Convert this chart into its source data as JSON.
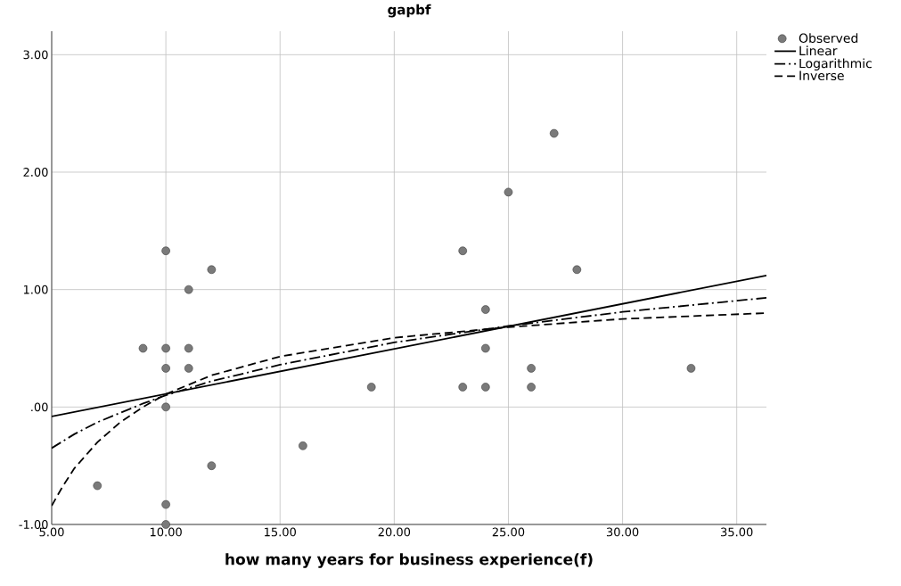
{
  "chart_data": {
    "type": "scatter",
    "title": "gapbf",
    "xlabel": "how many years for business experience(f)",
    "xlim": [
      5,
      36.3
    ],
    "ylim": [
      -1,
      3.2
    ],
    "xticks": [
      {
        "value": 5,
        "label": "5.00"
      },
      {
        "value": 10,
        "label": "10.00"
      },
      {
        "value": 15,
        "label": "15.00"
      },
      {
        "value": 20,
        "label": "20.00"
      },
      {
        "value": 25,
        "label": "25.00"
      },
      {
        "value": 30,
        "label": "30.00"
      },
      {
        "value": 35,
        "label": "35.00"
      }
    ],
    "yticks": [
      {
        "value": -1,
        "label": "-1.00"
      },
      {
        "value": 0,
        "label": ".00"
      },
      {
        "value": 1,
        "label": "1.00"
      },
      {
        "value": 2,
        "label": "2.00"
      },
      {
        "value": 3,
        "label": "3.00"
      }
    ],
    "grid": true,
    "legend": "top right",
    "series": [
      {
        "name": "Observed",
        "type": "scatter",
        "marker": "circle",
        "color": "#7a7a7a",
        "x": [
          7,
          9,
          10,
          10,
          10,
          10,
          10,
          10,
          11,
          11,
          11,
          12,
          12,
          16,
          19,
          23,
          23,
          24,
          24,
          24,
          25,
          26,
          26,
          27,
          28,
          33
        ],
        "values": [
          -0.67,
          0.5,
          1.33,
          0.5,
          0.33,
          0,
          -0.83,
          -1,
          1,
          0.5,
          0.33,
          1.17,
          -0.5,
          -0.33,
          0.17,
          1.33,
          0.17,
          0.83,
          0.5,
          0.17,
          1.83,
          0.33,
          0.17,
          2.33,
          1.17,
          0.33
        ]
      },
      {
        "name": "Linear",
        "type": "line",
        "marker": "none",
        "line_style": "solid",
        "color": "#000000",
        "x": [
          5,
          36.3
        ],
        "values": [
          -0.08,
          1.12
        ]
      },
      {
        "name": "Logarithmic",
        "type": "line",
        "marker": "none",
        "line_style": "dashdot",
        "color": "#000000",
        "x": [
          5,
          6,
          7,
          8,
          9,
          10,
          12,
          15,
          20,
          25,
          30,
          36.3
        ],
        "values": [
          -0.35,
          -0.23,
          -0.13,
          -0.05,
          0.03,
          0.1,
          0.22,
          0.36,
          0.55,
          0.69,
          0.81,
          0.93
        ]
      },
      {
        "name": "Inverse",
        "type": "line",
        "marker": "none",
        "line_style": "dashed",
        "color": "#000000",
        "x": [
          5,
          5.5,
          6,
          7,
          8,
          9,
          10,
          12,
          15,
          20,
          25,
          30,
          36.3
        ],
        "values": [
          -0.84,
          -0.67,
          -0.52,
          -0.3,
          -0.13,
          0,
          0.11,
          0.27,
          0.43,
          0.59,
          0.68,
          0.75,
          0.8
        ]
      }
    ]
  }
}
